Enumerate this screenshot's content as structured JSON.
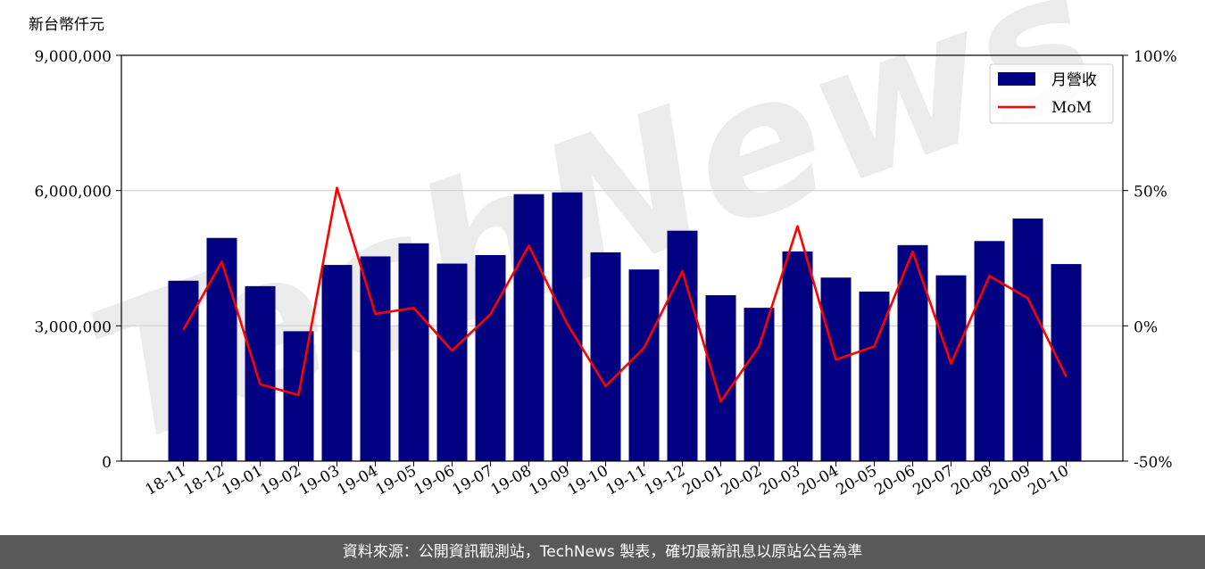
{
  "chart_data": {
    "type": "bar",
    "unit_label": "新台幣仟元",
    "categories": [
      "18-11",
      "18-12",
      "19-01",
      "19-02",
      "19-03",
      "19-04",
      "19-05",
      "19-06",
      "19-07",
      "19-08",
      "19-09",
      "19-10",
      "19-11",
      "19-12",
      "20-01",
      "20-02",
      "20-03",
      "20-04",
      "20-05",
      "20-06",
      "20-07",
      "20-08",
      "20-09",
      "20-10"
    ],
    "series": [
      {
        "name": "月營收",
        "type": "bar",
        "axis": "left",
        "color": "#000080",
        "values": [
          4000000,
          4950000,
          3880000,
          2880000,
          4350000,
          4540000,
          4830000,
          4380000,
          4570000,
          5920000,
          5960000,
          4630000,
          4250000,
          5110000,
          3680000,
          3400000,
          4650000,
          4070000,
          3760000,
          4790000,
          4120000,
          4880000,
          5380000,
          4370000
        ]
      },
      {
        "name": "MoM",
        "type": "line",
        "axis": "right",
        "color": "#ff0000",
        "values": [
          -1.5,
          23.7,
          -21.6,
          -25.6,
          51,
          4.4,
          6.6,
          -9.2,
          4.3,
          29.6,
          0.7,
          -22.3,
          -8.2,
          20.2,
          -28,
          -7.6,
          36.8,
          -12.5,
          -7.6,
          27.4,
          -14,
          18.4,
          10.2,
          -18.8
        ]
      }
    ],
    "ylim": [
      0,
      9000000
    ],
    "yticks": [
      0,
      3000000,
      6000000,
      9000000
    ],
    "ytick_labels": [
      "0",
      "3,000,000",
      "6,000,000",
      "9,000,000"
    ],
    "y2lim": [
      -50,
      100
    ],
    "y2ticks": [
      -50,
      0,
      50,
      100
    ],
    "y2tick_labels": [
      "-50%",
      "0%",
      "50%",
      "100%"
    ],
    "grid": "horizontal",
    "legend": "top-right",
    "watermark": "TechNews"
  },
  "footer": {
    "text": "資料來源：公開資訊觀測站，TechNews 製表，確切最新訊息以原站公告為準"
  }
}
